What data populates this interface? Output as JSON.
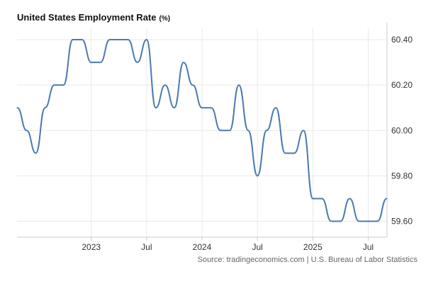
{
  "colors": {
    "line": "#4a7ab0",
    "grid": "#e9e9e9",
    "axis": "#cccccc"
  },
  "chart_data": {
    "type": "line",
    "title": "United States Employment Rate",
    "unit": "(%)",
    "source": "Source: tradingeconomics.com | U.S. Bureau of Labor Statistics",
    "xlabel": "",
    "ylabel": "",
    "ylim": [
      59.53,
      60.45
    ],
    "xlim": [
      2022.33,
      2025.67
    ],
    "y_ticks": [
      {
        "value": 59.6,
        "label": "59.60"
      },
      {
        "value": 59.8,
        "label": "59.80"
      },
      {
        "value": 60.0,
        "label": "60.00"
      },
      {
        "value": 60.2,
        "label": "60.20"
      },
      {
        "value": 60.4,
        "label": "60.40"
      }
    ],
    "x_ticks": [
      {
        "value": 2023.0,
        "label": "2023"
      },
      {
        "value": 2023.5,
        "label": "Jul"
      },
      {
        "value": 2024.0,
        "label": "2024"
      },
      {
        "value": 2024.5,
        "label": "Jul"
      },
      {
        "value": 2025.0,
        "label": "2025"
      },
      {
        "value": 2025.5,
        "label": "Jul"
      }
    ],
    "series": [
      {
        "name": "Employment Rate",
        "x": [
          2022.333,
          2022.417,
          2022.5,
          2022.583,
          2022.667,
          2022.75,
          2022.833,
          2022.917,
          2023.0,
          2023.083,
          2023.167,
          2023.25,
          2023.333,
          2023.417,
          2023.5,
          2023.583,
          2023.667,
          2023.75,
          2023.833,
          2023.917,
          2024.0,
          2024.083,
          2024.167,
          2024.25,
          2024.333,
          2024.417,
          2024.5,
          2024.583,
          2024.667,
          2024.75,
          2024.833,
          2024.917,
          2025.0,
          2025.083,
          2025.167,
          2025.25,
          2025.333,
          2025.417,
          2025.5,
          2025.583,
          2025.667
        ],
        "values": [
          60.1,
          60.0,
          59.9,
          60.1,
          60.2,
          60.2,
          60.4,
          60.4,
          60.3,
          60.3,
          60.4,
          60.4,
          60.4,
          60.3,
          60.4,
          60.1,
          60.2,
          60.1,
          60.3,
          60.2,
          60.1,
          60.1,
          60.0,
          60.0,
          60.2,
          60.0,
          59.8,
          60.0,
          60.1,
          59.9,
          59.9,
          60.0,
          59.7,
          59.7,
          59.6,
          59.6,
          59.7,
          59.6,
          59.6,
          59.6,
          59.7
        ]
      }
    ],
    "grid": true
  }
}
